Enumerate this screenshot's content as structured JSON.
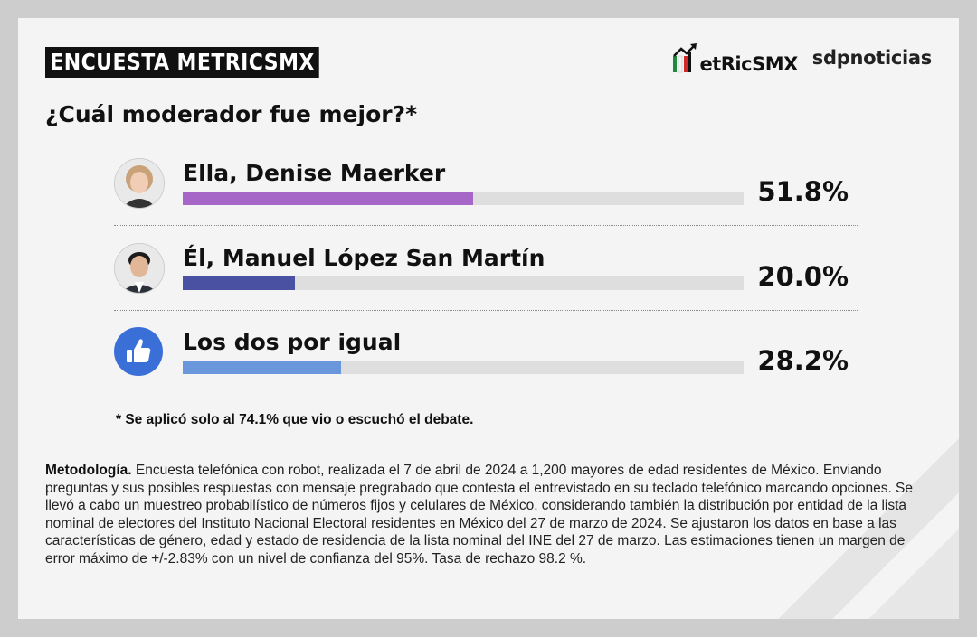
{
  "header": {
    "badge": "ENCUESTA METRICSMX",
    "logo_metrics": "etRicSMX",
    "logo_sdp": "sdpnoticias"
  },
  "question": "¿Cuál moderador fue mejor?*",
  "chart_data": {
    "type": "bar",
    "orientation": "horizontal",
    "categories": [
      "Ella, Denise Maerker",
      "Él, Manuel López San Martín",
      "Los dos por igual"
    ],
    "values": [
      51.8,
      20.0,
      28.2
    ],
    "value_labels": [
      "51.8%",
      "20.0%",
      "28.2%"
    ],
    "colors": [
      "#a566c7",
      "#4a50a2",
      "#6a96dc"
    ],
    "icons": [
      "woman-portrait-icon",
      "man-portrait-icon",
      "thumbs-up-icon"
    ],
    "xlim": [
      0,
      100
    ]
  },
  "footnote": "* Se aplicó solo al 74.1% que vio o escuchó el debate.",
  "methodology": {
    "label": "Metodología.",
    "text": " Encuesta telefónica con robot, realizada el 7 de abril de 2024 a 1,200 mayores de edad residentes de México. Enviando preguntas y sus posibles respuestas con mensaje pregrabado que contesta el entrevistado en su teclado telefónico marcando opciones. Se llevó a cabo un muestreo probabilístico de números fijos y celulares de México, considerando también la distribución por entidad de la lista nominal de electores del Instituto Nacional Electoral residentes en México del 27 de marzo de 2024. Se ajustaron los datos en base a las características de género, edad y estado de residencia de la lista nominal del INE del 27 de marzo. Las estimaciones tienen un margen de error máximo de +/-2.83% con un nivel de confianza del 95%. Tasa de rechazo 98.2 %."
  }
}
